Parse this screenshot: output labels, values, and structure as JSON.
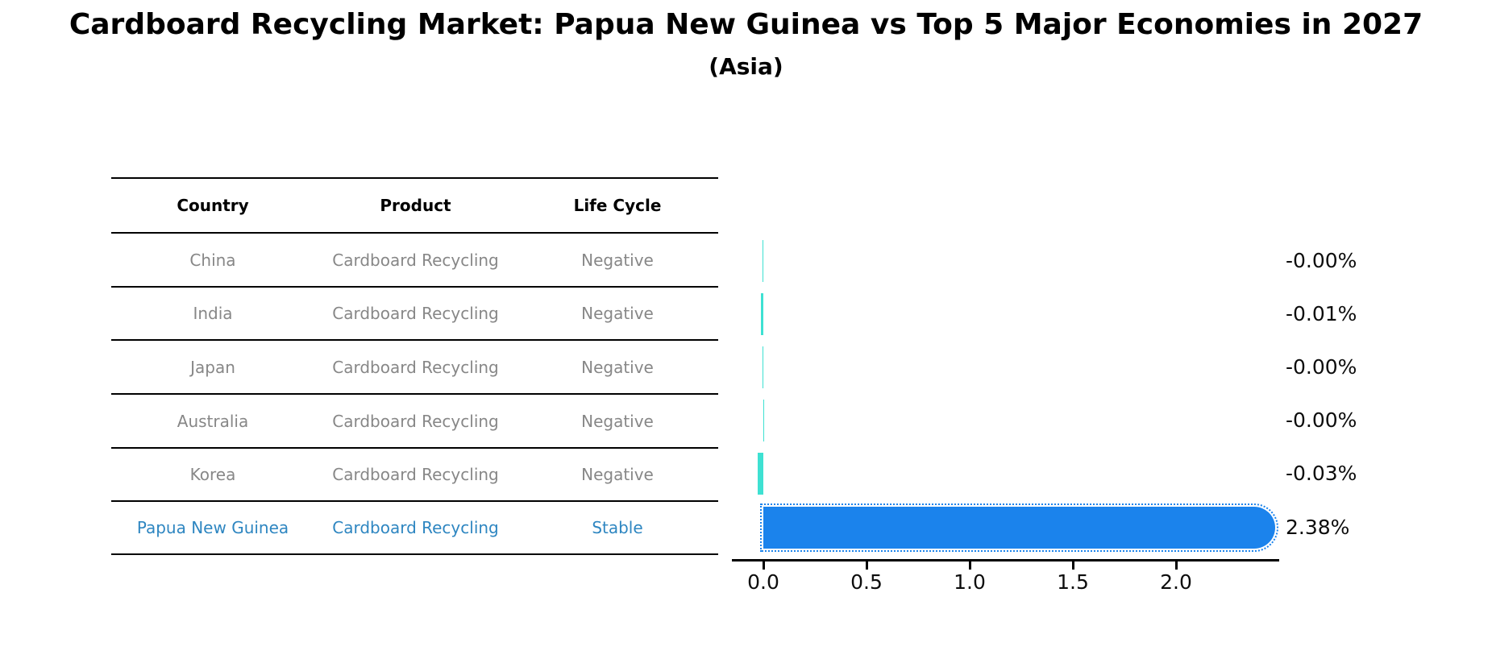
{
  "title": "Cardboard Recycling Market: Papua New Guinea vs Top 5 Major Economies in 2027",
  "subtitle": "(Asia)",
  "table": {
    "headers": [
      "Country",
      "Product",
      "Life Cycle"
    ],
    "rows": [
      {
        "country": "China",
        "product": "Cardboard Recycling",
        "life_cycle": "Negative"
      },
      {
        "country": "India",
        "product": "Cardboard Recycling",
        "life_cycle": "Negative"
      },
      {
        "country": "Japan",
        "product": "Cardboard Recycling",
        "life_cycle": "Negative"
      },
      {
        "country": "Australia",
        "product": "Cardboard Recycling",
        "life_cycle": "Negative"
      },
      {
        "country": "Korea",
        "product": "Cardboard Recycling",
        "life_cycle": "Negative"
      },
      {
        "country": "Papua New Guinea",
        "product": "Cardboard Recycling",
        "life_cycle": "Stable"
      }
    ]
  },
  "chart_data": {
    "type": "bar",
    "orientation": "horizontal",
    "categories": [
      "China",
      "India",
      "Japan",
      "Australia",
      "Korea",
      "Papua New Guinea"
    ],
    "values": [
      -0.005,
      -0.012,
      -0.005,
      -0.001,
      -0.027,
      2.38
    ],
    "value_labels": [
      "-0.00%",
      "-0.01%",
      "-0.00%",
      "-0.00%",
      "-0.03%",
      "2.38%"
    ],
    "xticks": [
      0.0,
      0.5,
      1.0,
      1.5,
      2.0
    ],
    "xtick_labels": [
      "0.0",
      "0.5",
      "1.0",
      "1.5",
      "2.0"
    ],
    "xlim": [
      -0.15,
      2.5
    ],
    "grid": false,
    "legend": "none",
    "colors": {
      "negative_bar": "#3EE1D2",
      "positive_bar": "#1B83EC",
      "highlight_text": "#2E86C1"
    }
  }
}
